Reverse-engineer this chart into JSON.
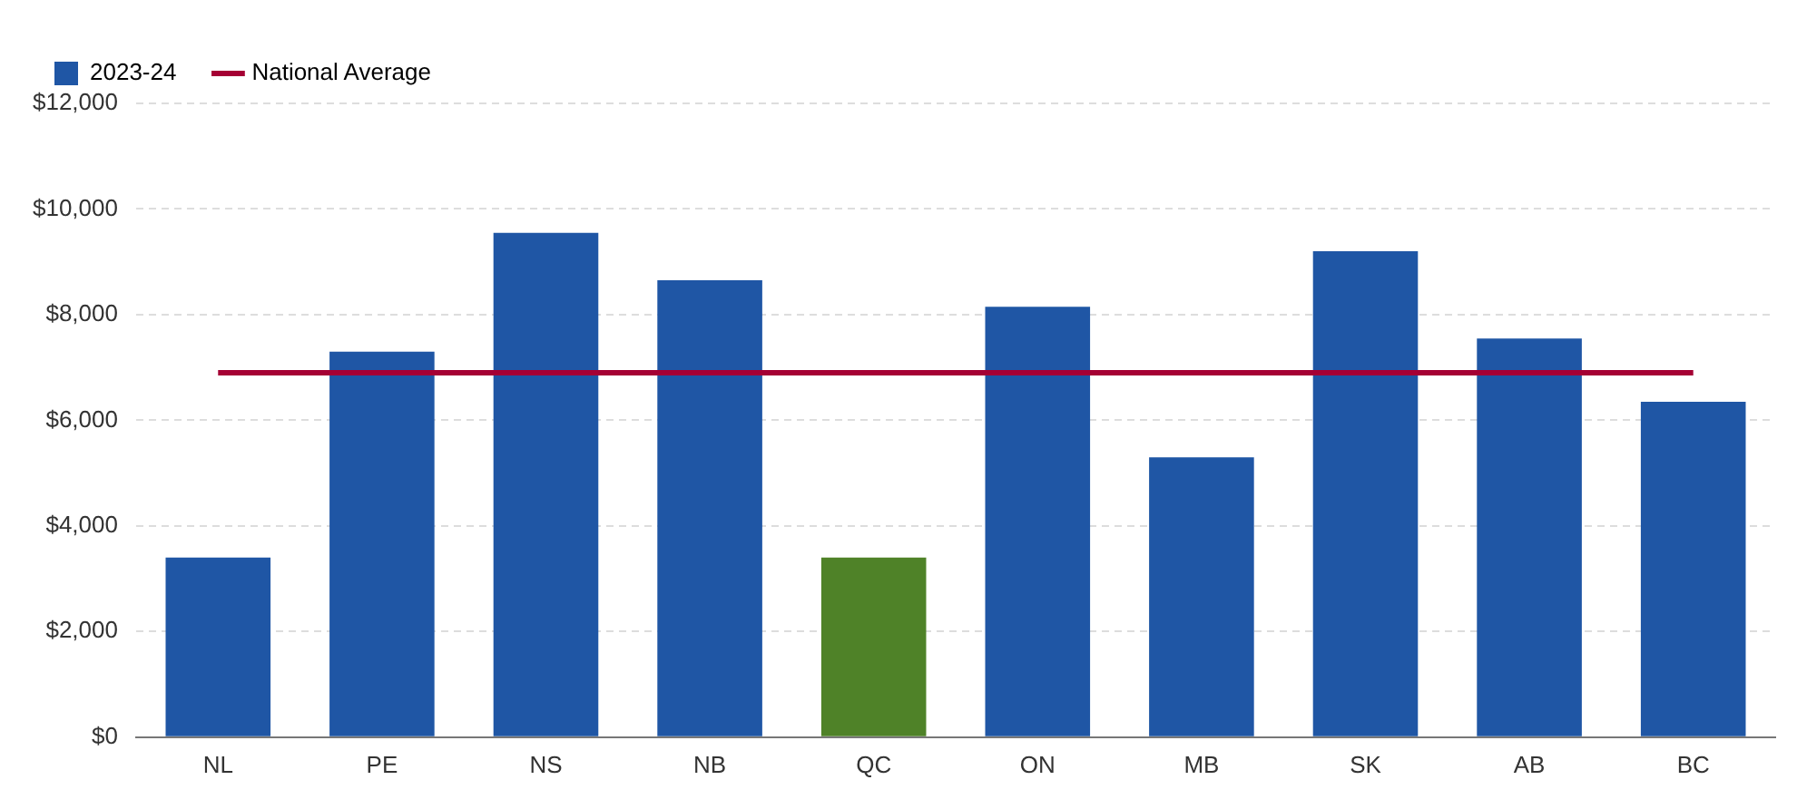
{
  "chart_data": {
    "type": "bar",
    "categories": [
      "NL",
      "PE",
      "NS",
      "NB",
      "QC",
      "ON",
      "MB",
      "SK",
      "AB",
      "BC"
    ],
    "series": [
      {
        "name": "2023-24",
        "color": "#1f56a5",
        "colors": [
          "#1f56a5",
          "#1f56a5",
          "#1f56a5",
          "#1f56a5",
          "#4f8228",
          "#1f56a5",
          "#1f56a5",
          "#1f56a5",
          "#1f56a5",
          "#1f56a5"
        ],
        "values": [
          3400,
          7300,
          9550,
          8650,
          3400,
          8150,
          5300,
          9200,
          7550,
          6350
        ]
      },
      {
        "name": "National Average",
        "type": "line",
        "color": "#a50034",
        "marker": "none",
        "values": [
          6900,
          6900,
          6900,
          6900,
          6900,
          6900,
          6900,
          6900,
          6900,
          6900
        ]
      }
    ],
    "ylim": [
      0,
      12000
    ],
    "yticks": [
      {
        "value": 0,
        "label": "$0"
      },
      {
        "value": 2000,
        "label": "$2,000"
      },
      {
        "value": 4000,
        "label": "$4,000"
      },
      {
        "value": 6000,
        "label": "$6,000"
      },
      {
        "value": 8000,
        "label": "$8,000"
      },
      {
        "value": 10000,
        "label": "$10,000"
      },
      {
        "value": 12000,
        "label": "$12,000"
      }
    ],
    "grid": "y",
    "legend": "top left"
  }
}
